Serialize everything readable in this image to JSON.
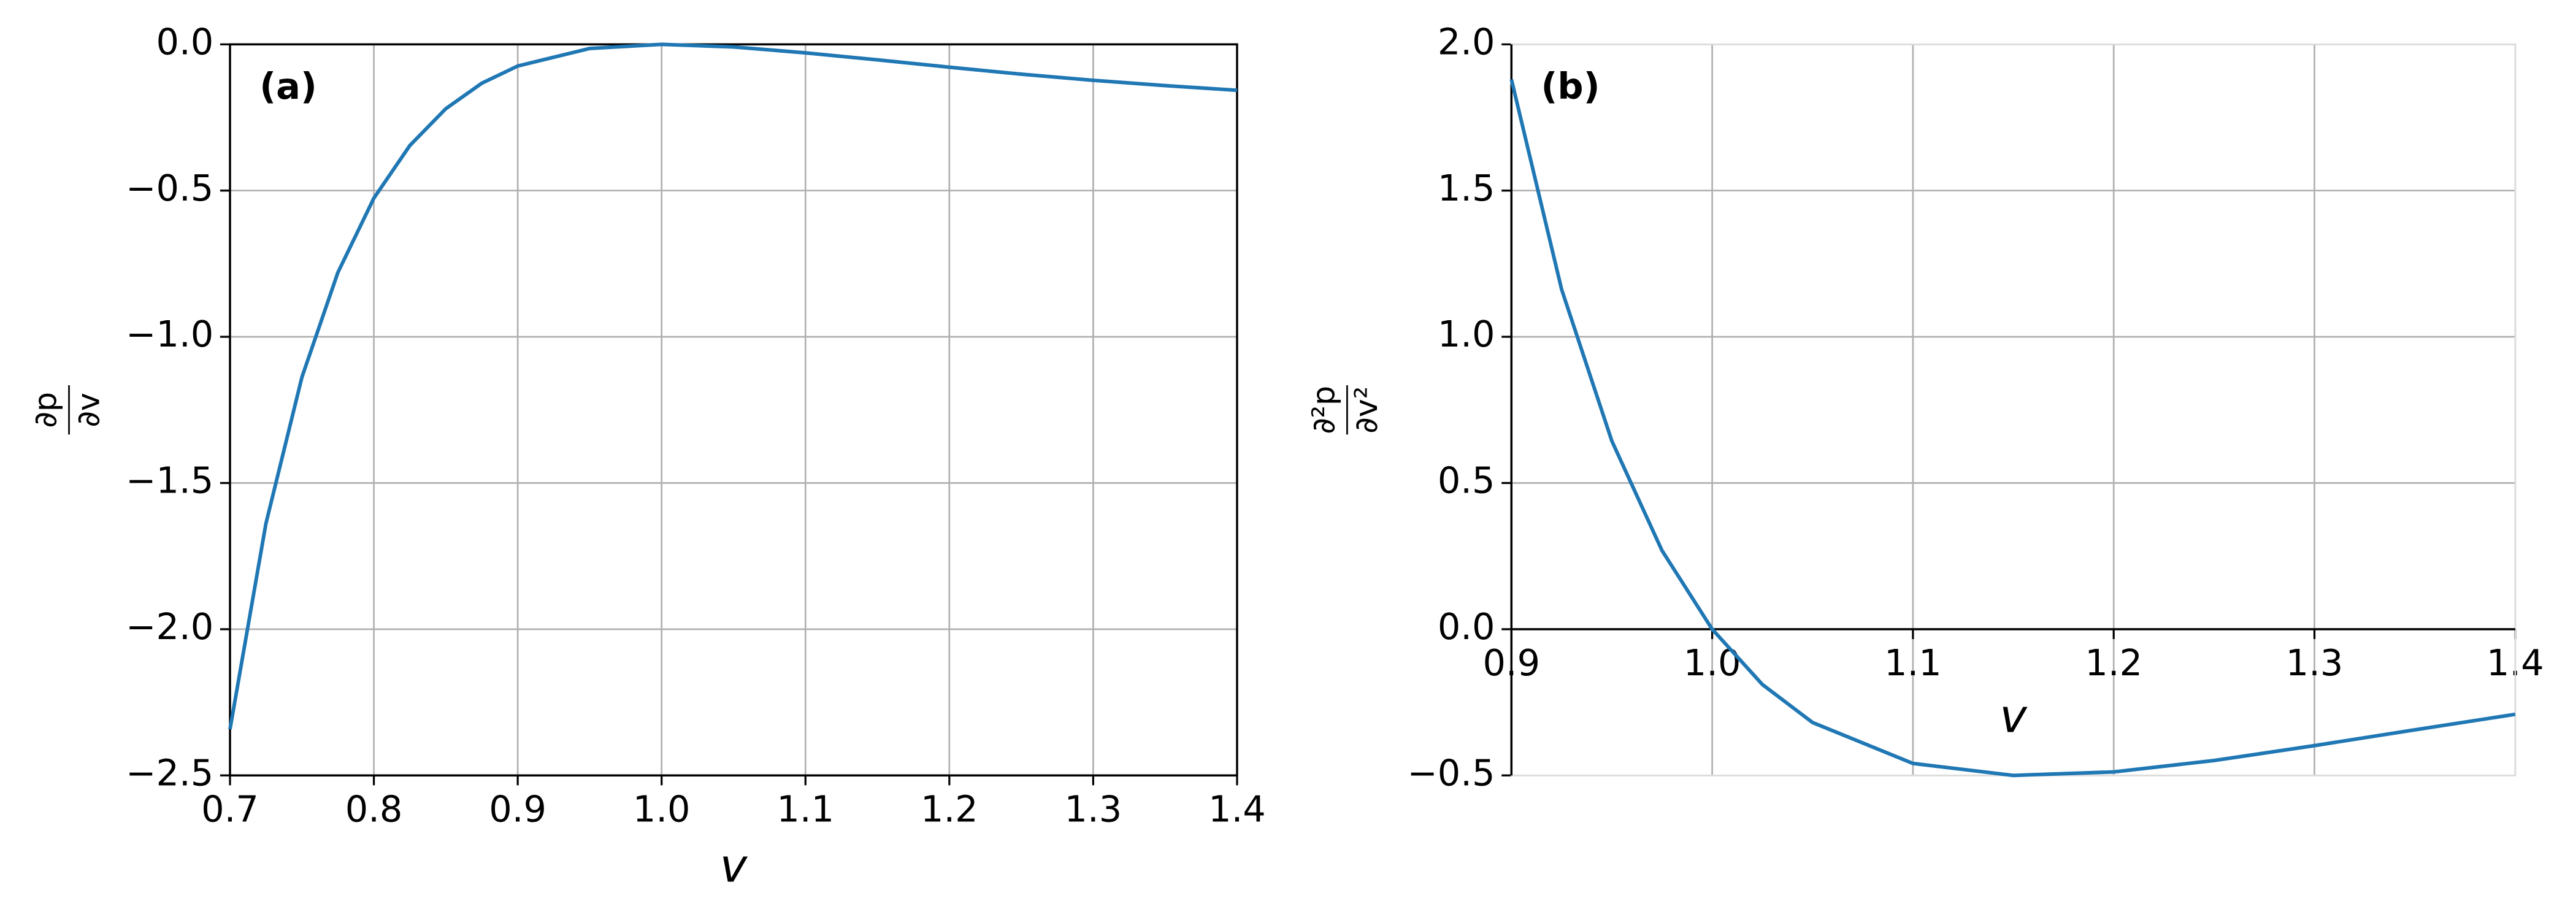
{
  "chart_data": [
    {
      "type": "line",
      "panel_label": "(a)",
      "xlabel": "v",
      "ylabel": {
        "numerator": "∂p",
        "denominator": "∂v"
      },
      "x": [
        0.7,
        0.725,
        0.75,
        0.775,
        0.8,
        0.825,
        0.85,
        0.875,
        0.9,
        0.95,
        1.0,
        1.05,
        1.1,
        1.15,
        1.2,
        1.25,
        1.3,
        1.35,
        1.4
      ],
      "series": [
        {
          "color": "#1f77b4",
          "values": [
            -2.342,
            -1.638,
            -1.138,
            -0.78,
            -0.526,
            -0.346,
            -0.22,
            -0.133,
            -0.074,
            -0.014,
            0,
            -0.009,
            -0.029,
            -0.053,
            -0.078,
            -0.102,
            -0.123,
            -0.141,
            -0.157
          ]
        }
      ],
      "xlim": [
        0.7,
        1.4
      ],
      "ylim": [
        -2.5,
        0
      ],
      "xticks": [
        0.7,
        0.8,
        0.9,
        {
          "value": 1,
          "label": "1.0"
        },
        1.1,
        1.2,
        1.3,
        1.4
      ],
      "yticks": [
        {
          "value": -2.5,
          "label": "−2.5"
        },
        {
          "value": -2,
          "label": "−2.0"
        },
        {
          "value": -1.5,
          "label": "−1.5"
        },
        {
          "value": -1,
          "label": "−1.0"
        },
        {
          "value": -0.5,
          "label": "−0.5"
        },
        {
          "value": 0,
          "label": "0.0"
        }
      ],
      "grid": true,
      "axes_at_zero": false
    },
    {
      "type": "line",
      "panel_label": "(b)",
      "xlabel": "v",
      "ylabel": {
        "numerator": "∂²p",
        "denominator": "∂v²"
      },
      "x": [
        0.9,
        0.925,
        0.95,
        0.975,
        1.0,
        1.025,
        1.05,
        1.1,
        1.15,
        1.2,
        1.25,
        1.3,
        1.35,
        1.4
      ],
      "series": [
        {
          "color": "#1f77b4",
          "values": [
            1.88,
            1.162,
            0.644,
            0.269,
            0,
            -0.189,
            -0.319,
            -0.459,
            -0.5,
            -0.488,
            -0.449,
            -0.398,
            -0.344,
            -0.291
          ]
        }
      ],
      "xlim": [
        0.9,
        1.4
      ],
      "ylim": [
        -0.5,
        2
      ],
      "xticks": [
        0.9,
        {
          "value": 1,
          "label": "1.0"
        },
        1.1,
        1.2,
        1.3,
        1.4
      ],
      "yticks": [
        {
          "value": -0.5,
          "label": "−0.5"
        },
        {
          "value": 0,
          "label": "0.0"
        },
        0.5,
        {
          "value": 1,
          "label": "1.0"
        },
        1.5,
        {
          "value": 2,
          "label": "2.0"
        }
      ],
      "grid": true,
      "axes_at_zero": true
    }
  ]
}
